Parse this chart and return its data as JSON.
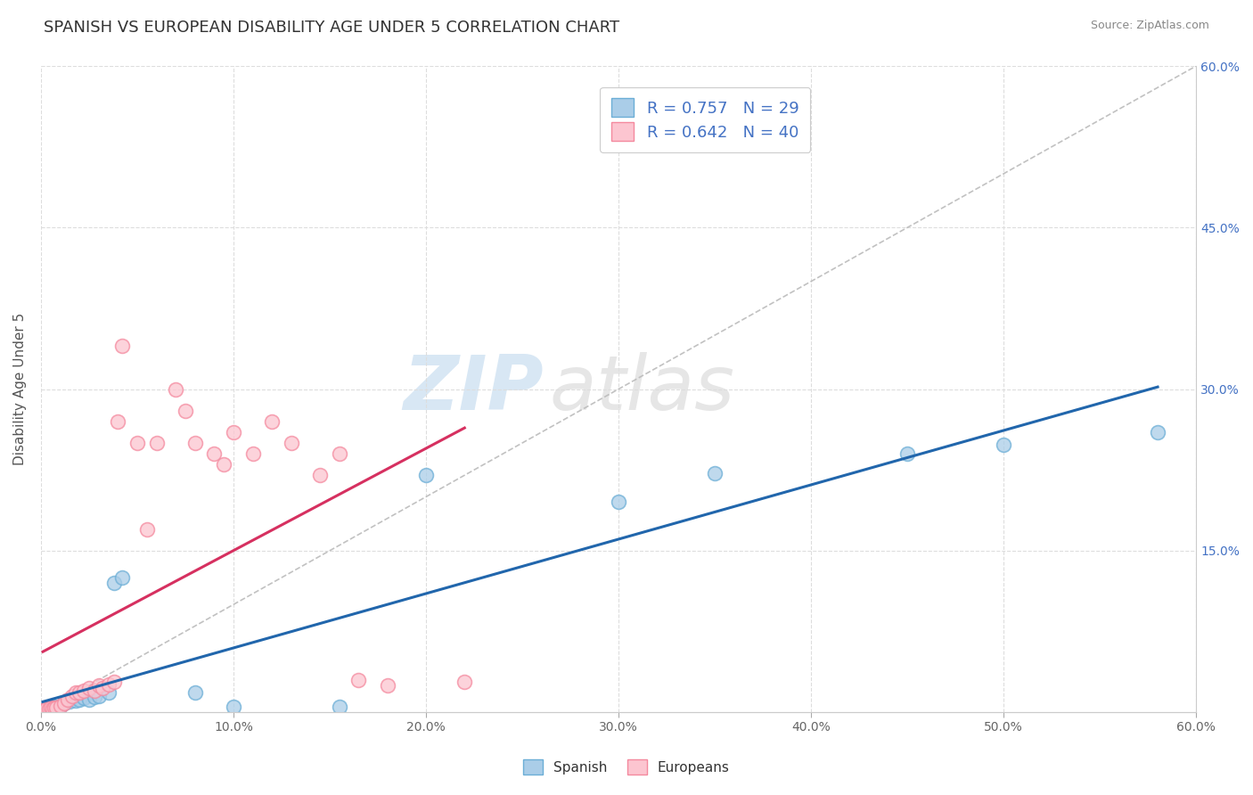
{
  "title": "SPANISH VS EUROPEAN DISABILITY AGE UNDER 5 CORRELATION CHART",
  "source": "Source: ZipAtlas.com",
  "ylabel": "Disability Age Under 5",
  "xmin": 0.0,
  "xmax": 0.6,
  "ymin": 0.0,
  "ymax": 0.6,
  "xtick_positions": [
    0.0,
    0.1,
    0.2,
    0.3,
    0.4,
    0.5,
    0.6
  ],
  "xtick_labels": [
    "0.0%",
    "10.0%",
    "20.0%",
    "30.0%",
    "40.0%",
    "50.0%",
    "60.0%"
  ],
  "ytick_positions": [
    0.15,
    0.3,
    0.45,
    0.6
  ],
  "ytick_labels": [
    "15.0%",
    "30.0%",
    "45.0%",
    "60.0%"
  ],
  "spanish_face_color": "#aacde8",
  "spanish_edge_color": "#6baed6",
  "european_face_color": "#fcc5d0",
  "european_edge_color": "#f4899e",
  "spanish_line_color": "#2166ac",
  "european_line_color": "#d63060",
  "ref_line_color": "#bbbbbb",
  "legend_label_spanish": "R = 0.757   N = 29",
  "legend_label_european": "R = 0.642   N = 40",
  "watermark_zip": "ZIP",
  "watermark_atlas": "atlas",
  "background_color": "#ffffff",
  "grid_color": "#dddddd",
  "title_fontsize": 13,
  "axis_label_fontsize": 11,
  "tick_fontsize": 10,
  "legend_fontsize": 13,
  "spanish_points_x": [
    0.001,
    0.002,
    0.003,
    0.004,
    0.005,
    0.006,
    0.007,
    0.008,
    0.01,
    0.012,
    0.015,
    0.018,
    0.02,
    0.022,
    0.025,
    0.028,
    0.03,
    0.035,
    0.038,
    0.042,
    0.08,
    0.1,
    0.155,
    0.2,
    0.3,
    0.35,
    0.45,
    0.5,
    0.58
  ],
  "spanish_points_y": [
    0.002,
    0.003,
    0.003,
    0.004,
    0.003,
    0.003,
    0.005,
    0.004,
    0.006,
    0.008,
    0.01,
    0.011,
    0.012,
    0.013,
    0.012,
    0.014,
    0.015,
    0.018,
    0.12,
    0.125,
    0.018,
    0.005,
    0.005,
    0.22,
    0.195,
    0.222,
    0.24,
    0.248,
    0.26
  ],
  "european_points_x": [
    0.001,
    0.002,
    0.003,
    0.004,
    0.005,
    0.006,
    0.007,
    0.008,
    0.01,
    0.012,
    0.014,
    0.016,
    0.018,
    0.02,
    0.022,
    0.025,
    0.028,
    0.03,
    0.032,
    0.035,
    0.038,
    0.04,
    0.042,
    0.05,
    0.055,
    0.06,
    0.07,
    0.075,
    0.08,
    0.09,
    0.095,
    0.1,
    0.11,
    0.12,
    0.13,
    0.145,
    0.155,
    0.165,
    0.18,
    0.22
  ],
  "european_points_y": [
    0.002,
    0.002,
    0.003,
    0.003,
    0.004,
    0.003,
    0.004,
    0.004,
    0.006,
    0.008,
    0.012,
    0.015,
    0.018,
    0.018,
    0.02,
    0.022,
    0.02,
    0.025,
    0.022,
    0.026,
    0.028,
    0.27,
    0.34,
    0.25,
    0.17,
    0.25,
    0.3,
    0.28,
    0.25,
    0.24,
    0.23,
    0.26,
    0.24,
    0.27,
    0.25,
    0.22,
    0.24,
    0.03,
    0.025,
    0.028
  ]
}
